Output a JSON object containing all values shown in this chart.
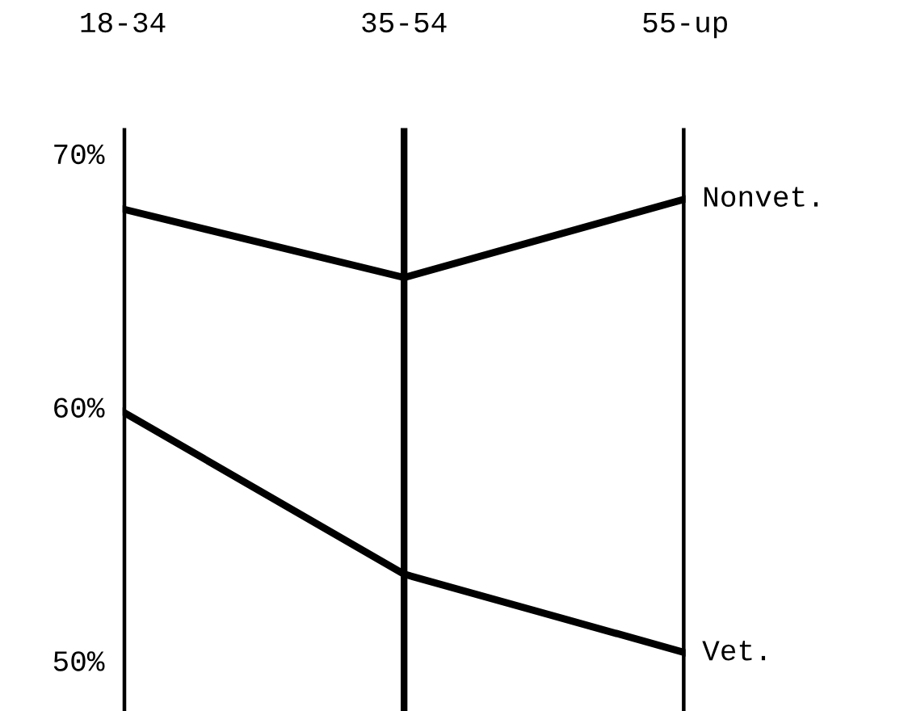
{
  "chart_data": {
    "type": "line",
    "categories": [
      "18-34",
      "35-54",
      "55-up"
    ],
    "series": [
      {
        "name": "Nonvet.",
        "color": "#000000",
        "values": [
          67.8,
          65.1,
          68.2
        ]
      },
      {
        "name": "Vet.",
        "color": "#000000",
        "values": [
          59.8,
          53.4,
          50.3
        ]
      }
    ],
    "ylim": [
      48,
      71
    ],
    "yticks": [
      {
        "value": 50,
        "label": "50%"
      },
      {
        "value": 60,
        "label": "60%"
      },
      {
        "value": 70,
        "label": "70%"
      }
    ],
    "grid": "x",
    "legend": false,
    "marker": "none",
    "line_style": "solid"
  }
}
